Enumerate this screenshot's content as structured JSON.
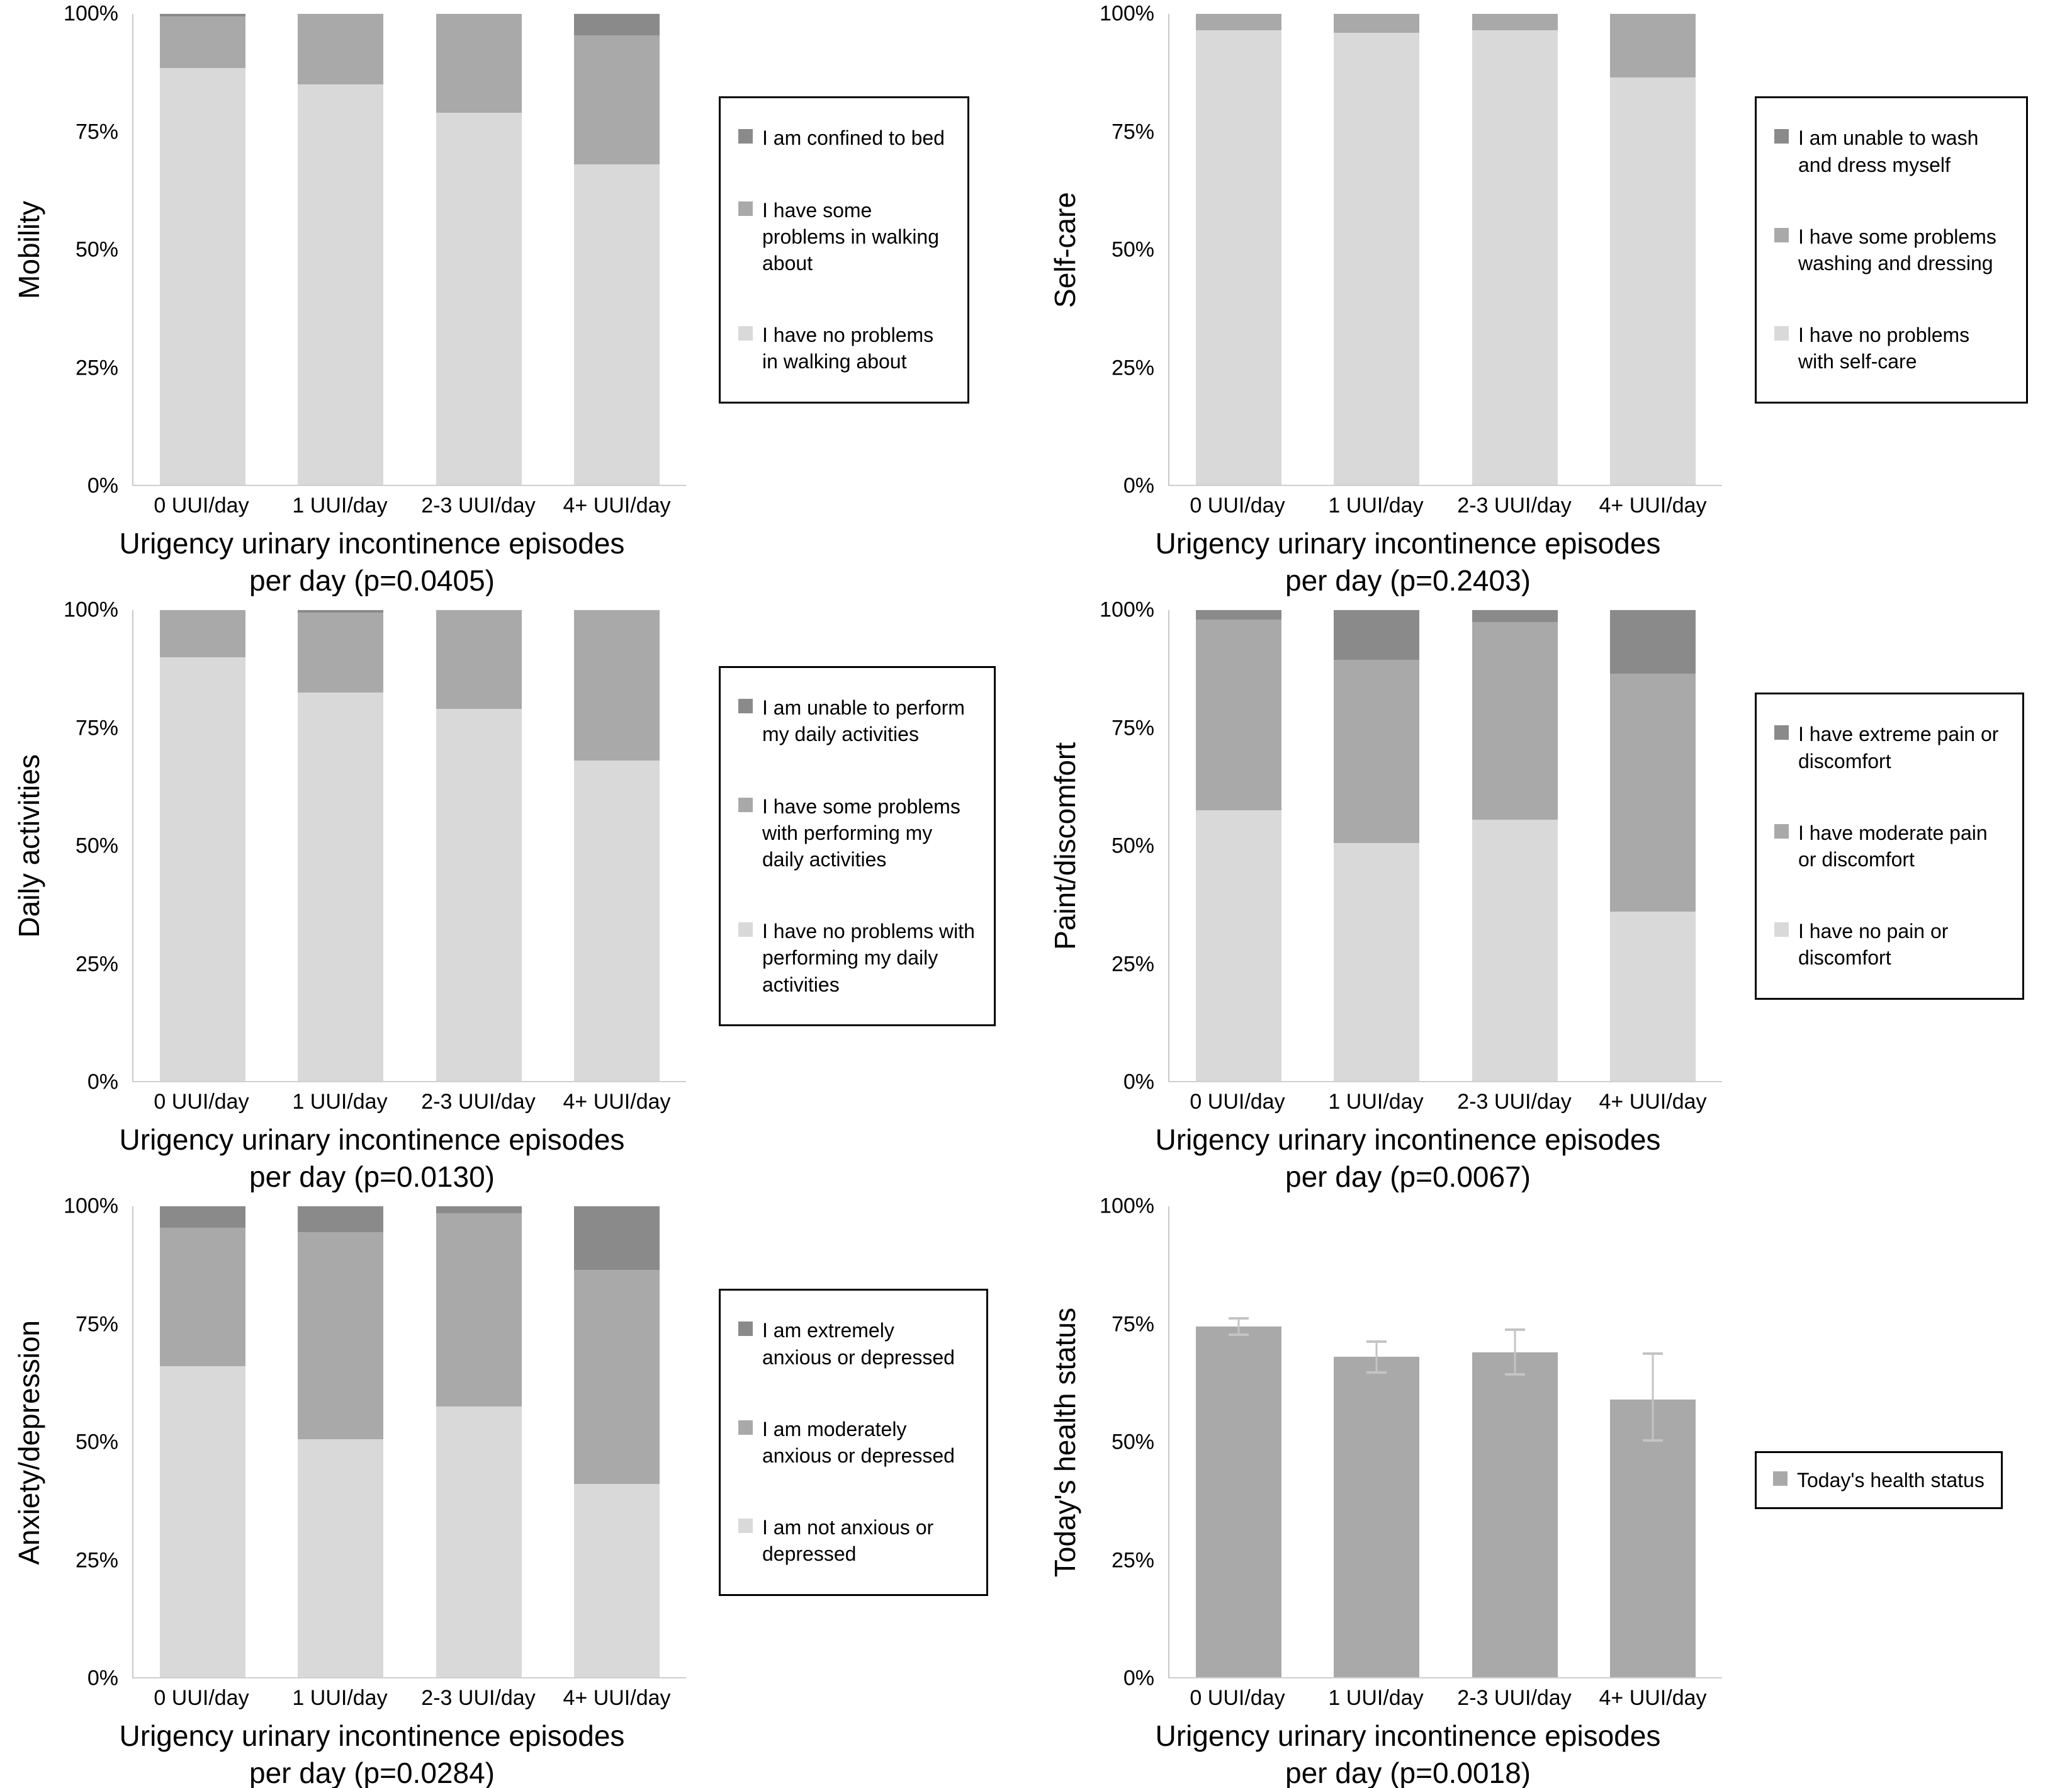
{
  "colors": {
    "light": "#d9d9d9",
    "medium": "#a9a9a9",
    "dark": "#8a8a8a",
    "bar_single": "#a9a9a9",
    "axis": "#c9c9c9",
    "error_bar": "#c4c4c4"
  },
  "chart_data": [
    {
      "type": "stacked-bar",
      "ylabel": "Mobility",
      "xlabel_line1": "Urigency urinary incontinence episodes",
      "xlabel_line2": "per day (p=0.0405)",
      "ylim": [
        0,
        100
      ],
      "yticks": [
        "100%",
        "75%",
        "50%",
        "25%",
        "0%"
      ],
      "categories": [
        "0 UUI/day",
        "1 UUI/day",
        "2-3 UUI/day",
        "4+ UUI/day"
      ],
      "legend": [
        {
          "label": "I am confined to bed",
          "color_key": "dark"
        },
        {
          "label": "I have some problems in walking about",
          "color_key": "medium"
        },
        {
          "label": "I have no problems in walking about",
          "color_key": "light"
        }
      ],
      "series": [
        {
          "name": "I have no problems in walking about",
          "color_key": "light",
          "values": [
            88.5,
            85,
            79,
            68
          ]
        },
        {
          "name": "I have some problems in walking about",
          "color_key": "medium",
          "values": [
            11,
            15,
            21,
            27.5
          ]
        },
        {
          "name": "I am confined to bed",
          "color_key": "dark",
          "values": [
            0.5,
            0,
            0,
            4.5
          ]
        }
      ]
    },
    {
      "type": "stacked-bar",
      "ylabel": "Self-care",
      "xlabel_line1": "Urigency urinary incontinence episodes",
      "xlabel_line2": "per day (p=0.2403)",
      "ylim": [
        0,
        100
      ],
      "yticks": [
        "100%",
        "75%",
        "50%",
        "25%",
        "0%"
      ],
      "categories": [
        "0 UUI/day",
        "1 UUI/day",
        "2-3 UUI/day",
        "4+ UUI/day"
      ],
      "legend": [
        {
          "label": "I am unable to wash and dress myself",
          "color_key": "dark"
        },
        {
          "label": "I have some problems washing and dressing",
          "color_key": "medium"
        },
        {
          "label": "I have no problems with self-care",
          "color_key": "light"
        }
      ],
      "series": [
        {
          "name": "I have no problems with self-care",
          "color_key": "light",
          "values": [
            96.5,
            96,
            96.5,
            86.5
          ]
        },
        {
          "name": "I have some problems washing and dressing",
          "color_key": "medium",
          "values": [
            3.5,
            4,
            3.5,
            13.5
          ]
        },
        {
          "name": "I am unable to wash and dress myself",
          "color_key": "dark",
          "values": [
            0,
            0,
            0,
            0
          ]
        }
      ]
    },
    {
      "type": "stacked-bar",
      "ylabel": "Daily activities",
      "xlabel_line1": "Urigency urinary incontinence episodes",
      "xlabel_line2": "per day (p=0.0130)",
      "ylim": [
        0,
        100
      ],
      "yticks": [
        "100%",
        "75%",
        "50%",
        "25%",
        "0%"
      ],
      "categories": [
        "0 UUI/day",
        "1 UUI/day",
        "2-3 UUI/day",
        "4+ UUI/day"
      ],
      "legend": [
        {
          "label": "I am unable to perform my daily activities",
          "color_key": "dark"
        },
        {
          "label": "I have some problems with performing my daily activities",
          "color_key": "medium"
        },
        {
          "label": "I have no problems with performing my daily activities",
          "color_key": "light"
        }
      ],
      "series": [
        {
          "name": "I have no problems with performing my daily activities",
          "color_key": "light",
          "values": [
            90,
            82.5,
            79,
            68
          ]
        },
        {
          "name": "I have some problems with performing my daily activities",
          "color_key": "medium",
          "values": [
            10,
            17,
            21,
            32
          ]
        },
        {
          "name": "I am unable to perform my daily activities",
          "color_key": "dark",
          "values": [
            0,
            0.5,
            0,
            0
          ]
        }
      ]
    },
    {
      "type": "stacked-bar",
      "ylabel": "Paint/discomfort",
      "xlabel_line1": "Urigency urinary incontinence episodes",
      "xlabel_line2": "per day (p=0.0067)",
      "ylim": [
        0,
        100
      ],
      "yticks": [
        "100%",
        "75%",
        "50%",
        "25%",
        "0%"
      ],
      "categories": [
        "0 UUI/day",
        "1 UUI/day",
        "2-3 UUI/day",
        "4+ UUI/day"
      ],
      "legend": [
        {
          "label": "I have extreme pain or discomfort",
          "color_key": "dark"
        },
        {
          "label": "I have moderate pain or discomfort",
          "color_key": "medium"
        },
        {
          "label": "I have no pain or discomfort",
          "color_key": "light"
        }
      ],
      "series": [
        {
          "name": "I have no pain or discomfort",
          "color_key": "light",
          "values": [
            57.5,
            50.5,
            55.5,
            36
          ]
        },
        {
          "name": "I have moderate pain or discomfort",
          "color_key": "medium",
          "values": [
            40.5,
            39,
            42,
            50.5
          ]
        },
        {
          "name": "I have extreme pain or discomfort",
          "color_key": "dark",
          "values": [
            2,
            10.5,
            2.5,
            13.5
          ]
        }
      ]
    },
    {
      "type": "stacked-bar",
      "ylabel": "Anxiety/depression",
      "xlabel_line1": "Urigency urinary incontinence episodes",
      "xlabel_line2": "per day (p=0.0284)",
      "ylim": [
        0,
        100
      ],
      "yticks": [
        "100%",
        "75%",
        "50%",
        "25%",
        "0%"
      ],
      "categories": [
        "0 UUI/day",
        "1 UUI/day",
        "2-3 UUI/day",
        "4+ UUI/day"
      ],
      "legend": [
        {
          "label": "I am extremely anxious or depressed",
          "color_key": "dark"
        },
        {
          "label": "I am moderately anxious or depressed",
          "color_key": "medium"
        },
        {
          "label": "I am not anxious or depressed",
          "color_key": "light"
        }
      ],
      "series": [
        {
          "name": "I am not anxious or depressed",
          "color_key": "light",
          "values": [
            66,
            50.5,
            57.5,
            41
          ]
        },
        {
          "name": "I am moderately anxious or depressed",
          "color_key": "medium",
          "values": [
            29.5,
            44,
            41,
            45.5
          ]
        },
        {
          "name": "I am extremely anxious or depressed",
          "color_key": "dark",
          "values": [
            4.5,
            5.5,
            1.5,
            13.5
          ]
        }
      ]
    },
    {
      "type": "bar",
      "ylabel": "Today's health status",
      "xlabel_line1": "Urigency urinary incontinence episodes",
      "xlabel_line2": "per day (p=0.0018)",
      "ylim": [
        0,
        100
      ],
      "yticks": [
        "100%",
        "75%",
        "50%",
        "25%",
        "0%"
      ],
      "categories": [
        "0 UUI/day",
        "1 UUI/day",
        "2-3 UUI/day",
        "4+ UUI/day"
      ],
      "legend": [
        {
          "label": "Today's health status",
          "color_key": "bar_single"
        }
      ],
      "series": [
        {
          "name": "Today's health status",
          "color_key": "bar_single",
          "values": [
            74.5,
            68,
            69,
            59
          ]
        }
      ],
      "error_bars": {
        "minus": [
          2,
          3.5,
          5,
          9
        ],
        "plus": [
          2,
          3.5,
          5,
          10
        ]
      }
    }
  ]
}
